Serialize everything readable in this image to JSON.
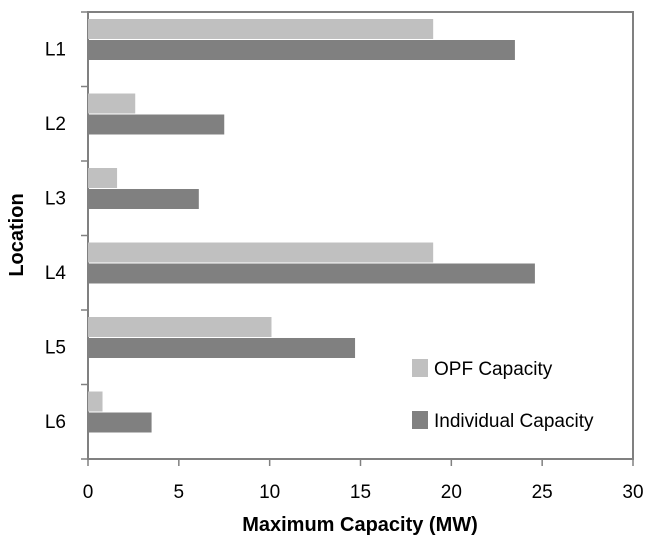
{
  "chart_data": {
    "type": "bar",
    "orientation": "horizontal",
    "categories": [
      "L1",
      "L2",
      "L3",
      "L4",
      "L5",
      "L6"
    ],
    "series": [
      {
        "name": "OPF Capacity",
        "color": "#c0c0c0",
        "values": [
          19.0,
          2.6,
          1.6,
          19.0,
          10.1,
          0.8
        ]
      },
      {
        "name": "Individual Capacity",
        "color": "#808080",
        "values": [
          23.5,
          7.5,
          6.1,
          24.6,
          14.7,
          3.5
        ]
      }
    ],
    "xlabel": "Maximum Capacity (MW)",
    "ylabel": "Location",
    "xlim": [
      0,
      30
    ],
    "xticks": [
      0,
      5,
      10,
      15,
      20,
      25,
      30
    ],
    "grid": false,
    "legend_position": "bottom-right"
  }
}
